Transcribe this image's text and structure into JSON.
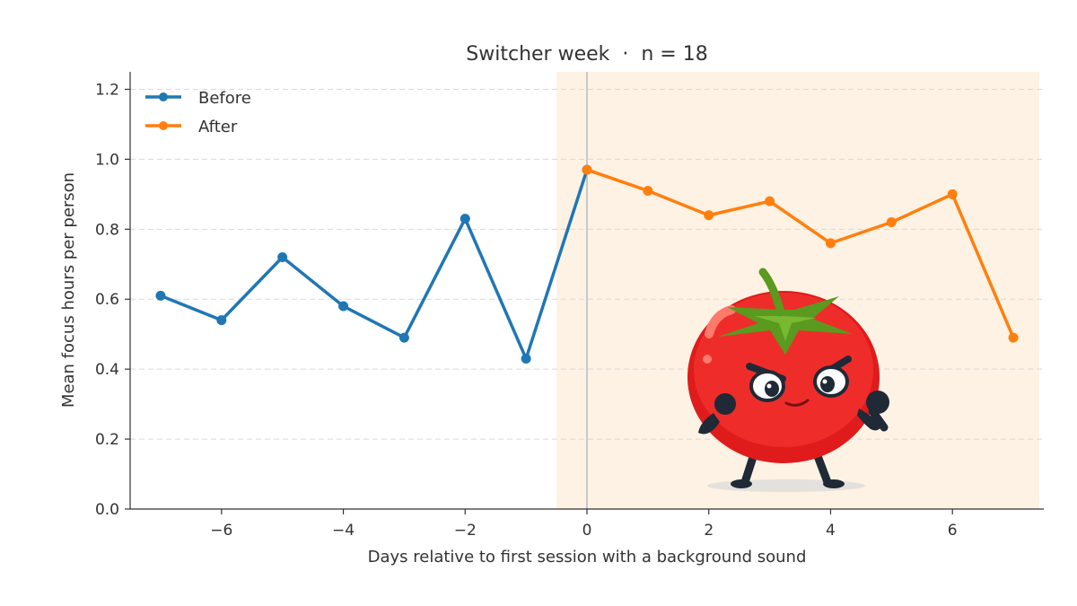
{
  "chart_data": {
    "type": "line",
    "title": "Switcher week  ·  n = 18",
    "xlabel": "Days relative to first session with a background sound",
    "ylabel": "Mean focus hours per person",
    "xlim": [
      -7.5,
      7.5
    ],
    "ylim": [
      0,
      1.25
    ],
    "xticks": [
      -6,
      -4,
      -2,
      0,
      2,
      4,
      6
    ],
    "xtick_labels": [
      "−6",
      "−4",
      "−2",
      "0",
      "2",
      "4",
      "6"
    ],
    "yticks": [
      0.0,
      0.2,
      0.4,
      0.6,
      0.8,
      1.0,
      1.2
    ],
    "ytick_labels": [
      "0.0",
      "0.2",
      "0.4",
      "0.6",
      "0.8",
      "1.0",
      "1.2"
    ],
    "grid": "horizontal dashed",
    "legend_position": "top-left",
    "shaded_region": {
      "from": -0.5,
      "to": 7.5,
      "color": "#fdf2e4"
    },
    "reference_line": {
      "x": 0,
      "color": "#c8c8c8"
    },
    "series": [
      {
        "name": "Before",
        "color": "#1f77b4",
        "x": [
          -7,
          -6,
          -5,
          -4,
          -3,
          -2,
          -1,
          0
        ],
        "y": [
          0.61,
          0.54,
          0.72,
          0.58,
          0.49,
          0.83,
          0.43,
          0.97
        ]
      },
      {
        "name": "After",
        "color": "#ff7f0e",
        "x": [
          0,
          1,
          2,
          3,
          4,
          5,
          6,
          7
        ],
        "y": [
          0.97,
          0.91,
          0.84,
          0.88,
          0.76,
          0.82,
          0.9,
          0.49
        ]
      }
    ],
    "illustration": "angry-tomato-mascot"
  }
}
